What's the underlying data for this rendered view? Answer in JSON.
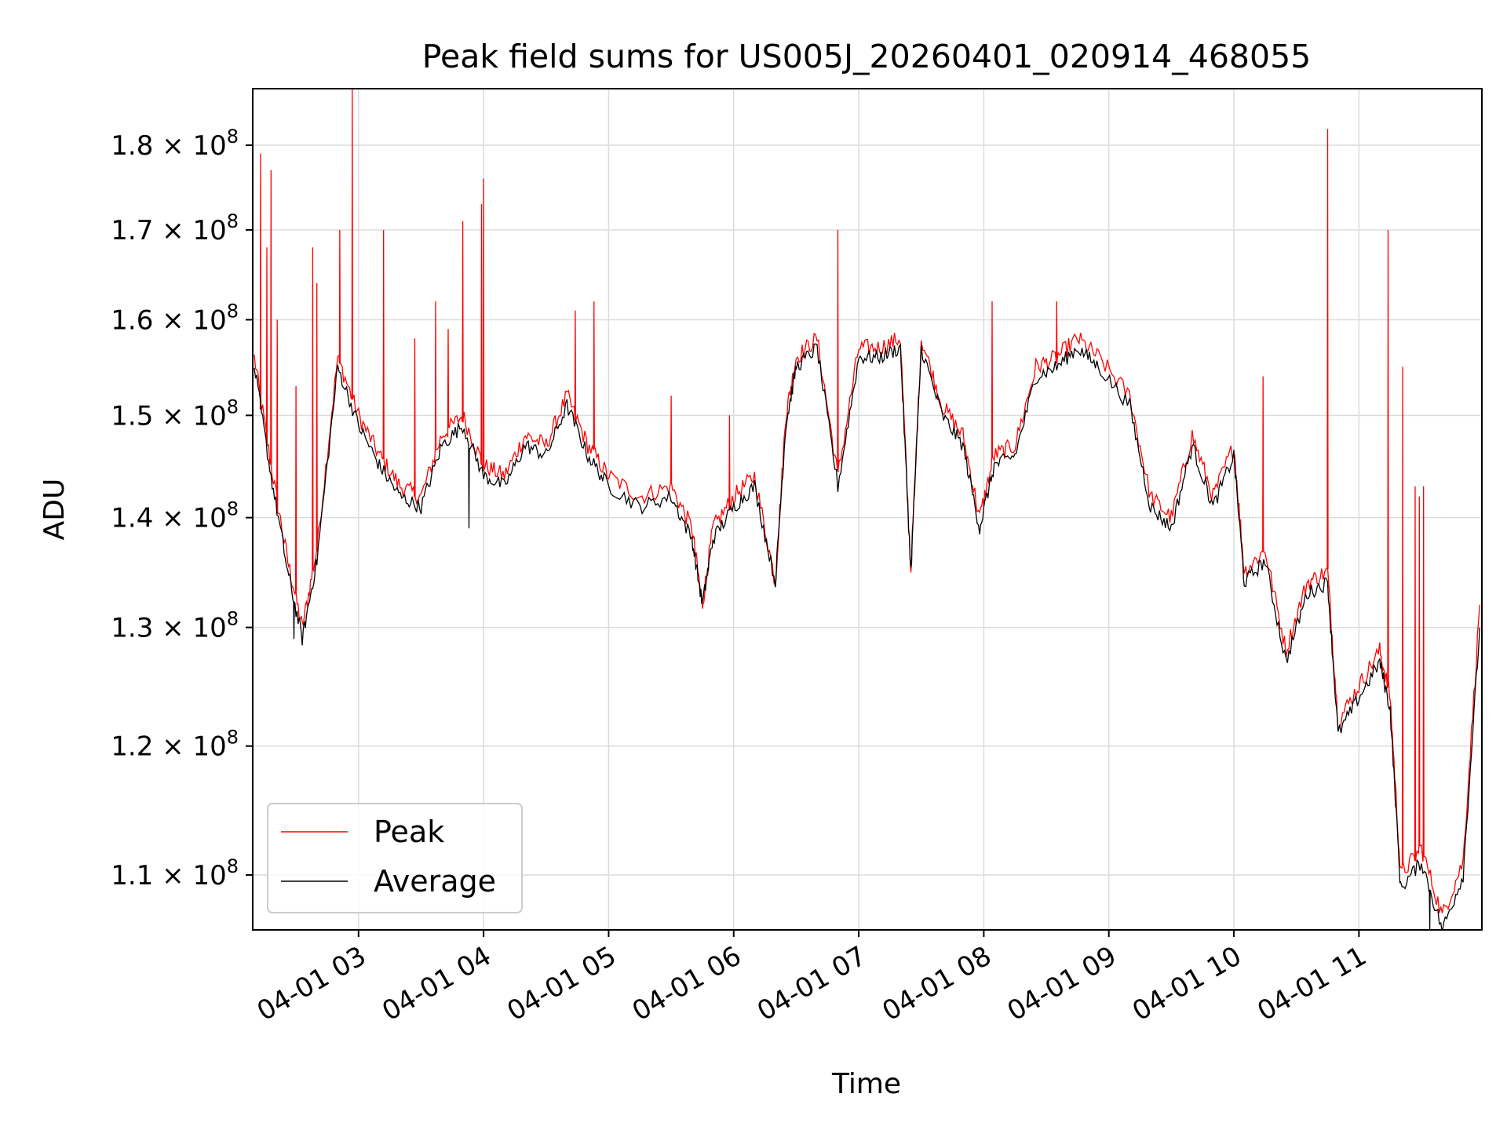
{
  "chart_data": {
    "type": "line",
    "title": "Peak field sums for US005J_20260401_020914_468055",
    "xlabel": "Time",
    "ylabel": "ADU",
    "yscale": "log",
    "grid": true,
    "legend_position": "lower-left",
    "xlim": [
      "2026-04-01 02:09:14",
      "2026-04-01 11:59:00"
    ],
    "ylim": [
      106000000,
      187000000
    ],
    "x_ticks": [
      "04-01 03",
      "04-01 04",
      "04-01 05",
      "04-01 06",
      "04-01 07",
      "04-01 08",
      "04-01 09",
      "04-01 10",
      "04-01 11"
    ],
    "y_ticks": [
      {
        "mantissa": "1.1",
        "exponent": "8",
        "value": 110000000
      },
      {
        "mantissa": "1.2",
        "exponent": "8",
        "value": 120000000
      },
      {
        "mantissa": "1.3",
        "exponent": "8",
        "value": 130000000
      },
      {
        "mantissa": "1.4",
        "exponent": "8",
        "value": 140000000
      },
      {
        "mantissa": "1.5",
        "exponent": "8",
        "value": 150000000
      },
      {
        "mantissa": "1.6",
        "exponent": "8",
        "value": 160000000
      },
      {
        "mantissa": "1.7",
        "exponent": "8",
        "value": 170000000
      },
      {
        "mantissa": "1.8",
        "exponent": "8",
        "value": 180000000
      }
    ],
    "tick_multiplier": "× 10",
    "x": [
      "02:10",
      "02:18",
      "02:26",
      "02:33",
      "02:40",
      "02:50",
      "03:00",
      "03:10",
      "03:20",
      "03:30",
      "03:40",
      "03:50",
      "04:00",
      "04:10",
      "04:20",
      "04:30",
      "04:40",
      "04:50",
      "05:00",
      "05:15",
      "05:30",
      "05:40",
      "05:45",
      "05:50",
      "06:00",
      "06:10",
      "06:20",
      "06:25",
      "06:30",
      "06:40",
      "06:50",
      "07:00",
      "07:10",
      "07:20",
      "07:25",
      "07:30",
      "07:40",
      "07:50",
      "07:58",
      "08:05",
      "08:15",
      "08:25",
      "08:35",
      "08:45",
      "08:55",
      "09:10",
      "09:20",
      "09:30",
      "09:40",
      "09:50",
      "10:00",
      "10:05",
      "10:15",
      "10:25",
      "10:35",
      "10:45",
      "10:50",
      "11:00",
      "11:10",
      "11:15",
      "11:20",
      "11:30",
      "11:40",
      "11:50",
      "11:58"
    ],
    "series": [
      {
        "name": "Peak",
        "color": "#ff0000",
        "values": [
          156000000,
          145000000,
          136000000,
          130000000,
          137000000,
          156000000,
          150000000,
          146000000,
          143000000,
          142000000,
          148000000,
          150000000,
          145000000,
          144000000,
          148000000,
          147000000,
          152000000,
          147000000,
          144000000,
          142000000,
          143000000,
          139000000,
          132000000,
          139000000,
          142000000,
          144000000,
          134000000,
          150000000,
          156000000,
          158000000,
          144000000,
          157000000,
          157000000,
          158000000,
          135000000,
          158000000,
          151000000,
          148000000,
          140000000,
          146000000,
          147000000,
          155000000,
          156000000,
          158000000,
          156000000,
          152000000,
          142000000,
          140000000,
          148000000,
          142000000,
          147000000,
          135000000,
          137000000,
          128000000,
          134000000,
          135000000,
          122000000,
          125000000,
          128000000,
          124000000,
          110000000,
          112000000,
          107000000,
          111000000,
          132000000
        ]
      },
      {
        "name": "Average",
        "color": "#000000",
        "values": [
          155000000,
          144000000,
          135000000,
          129000000,
          136000000,
          155000000,
          149000000,
          145000000,
          142000000,
          141000000,
          147000000,
          149000000,
          144000000,
          143000000,
          147000000,
          146000000,
          151000000,
          146000000,
          143000000,
          141000000,
          142000000,
          138000000,
          132000000,
          138000000,
          141000000,
          143000000,
          134000000,
          149000000,
          155000000,
          157000000,
          143000000,
          156000000,
          156000000,
          157000000,
          135000000,
          157000000,
          150000000,
          147000000,
          139000000,
          145000000,
          146000000,
          154000000,
          155000000,
          157000000,
          155000000,
          151000000,
          141000000,
          139000000,
          147000000,
          141000000,
          146000000,
          134000000,
          136000000,
          127000000,
          133000000,
          134000000,
          121000000,
          124000000,
          127000000,
          123000000,
          109000000,
          111000000,
          106000000,
          110000000,
          130000000
        ]
      }
    ],
    "spikes": [
      {
        "x": "02:13",
        "value": 179000000
      },
      {
        "x": "02:16",
        "value": 168000000
      },
      {
        "x": "02:18",
        "value": 177000000
      },
      {
        "x": "02:21",
        "value": 160000000
      },
      {
        "x": "02:30",
        "value": 153000000
      },
      {
        "x": "02:38",
        "value": 168000000
      },
      {
        "x": "02:40",
        "value": 164000000
      },
      {
        "x": "02:51",
        "value": 170000000
      },
      {
        "x": "02:57",
        "value": 187000000
      },
      {
        "x": "03:12",
        "value": 170000000
      },
      {
        "x": "03:27",
        "value": 158000000
      },
      {
        "x": "03:37",
        "value": 162000000
      },
      {
        "x": "03:43",
        "value": 159000000
      },
      {
        "x": "03:50",
        "value": 171000000
      },
      {
        "x": "03:59",
        "value": 173000000
      },
      {
        "x": "04:00",
        "value": 176000000
      },
      {
        "x": "04:44",
        "value": 161000000
      },
      {
        "x": "04:53",
        "value": 162000000
      },
      {
        "x": "05:30",
        "value": 152000000
      },
      {
        "x": "05:58",
        "value": 150000000
      },
      {
        "x": "06:50",
        "value": 170000000
      },
      {
        "x": "08:04",
        "value": 162000000
      },
      {
        "x": "08:35",
        "value": 162000000
      },
      {
        "x": "10:14",
        "value": 154000000
      },
      {
        "x": "10:45",
        "value": 182000000
      },
      {
        "x": "11:14",
        "value": 170000000
      },
      {
        "x": "11:21",
        "value": 155000000
      },
      {
        "x": "11:27",
        "value": 143000000
      },
      {
        "x": "11:29",
        "value": 142000000
      },
      {
        "x": "11:31",
        "value": 143000000
      }
    ],
    "dips": [
      {
        "x": "02:29",
        "value": 129000000
      },
      {
        "x": "03:53",
        "value": 139000000
      },
      {
        "x": "11:34",
        "value": 106000000
      }
    ]
  }
}
